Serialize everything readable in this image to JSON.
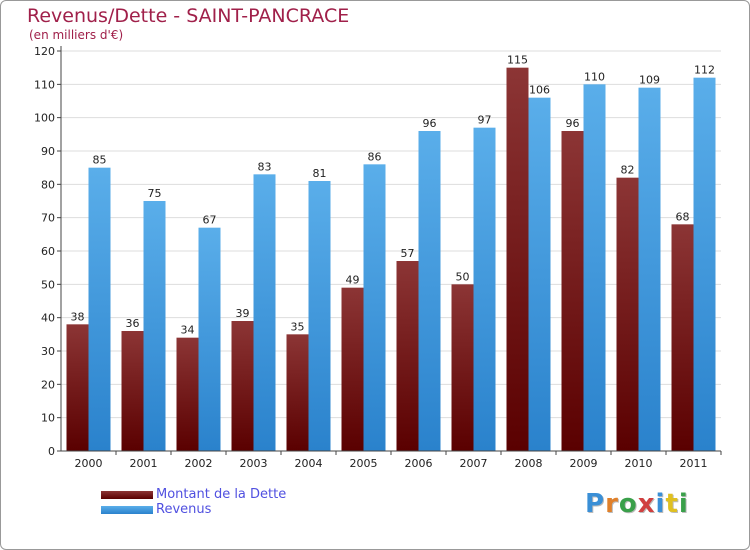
{
  "title": "Revenus/Dette - SAINT-PANCRACE",
  "subtitle": "(en milliers d'€)",
  "logo": {
    "text": "Proxiti",
    "colors": [
      "#3a8fd6",
      "#e0802a",
      "#3aa04a",
      "#d04040",
      "#3a8fd6",
      "#e0c020",
      "#3aa04a"
    ]
  },
  "colors": {
    "dette": "#6b0a0a",
    "revenus": "#2f8fdc",
    "title": "#a0204a",
    "legend_text": "#5050e0"
  },
  "chart_data": {
    "type": "bar",
    "title": "Revenus/Dette - SAINT-PANCRACE",
    "subtitle": "(en milliers d'€)",
    "categories": [
      "2000",
      "2001",
      "2002",
      "2003",
      "2004",
      "2005",
      "2006",
      "2007",
      "2008",
      "2009",
      "2010",
      "2011"
    ],
    "series": [
      {
        "name": "Montant de la Dette",
        "values": [
          38,
          36,
          34,
          39,
          35,
          49,
          57,
          50,
          115,
          96,
          82,
          68
        ]
      },
      {
        "name": "Revenus",
        "values": [
          85,
          75,
          67,
          83,
          81,
          86,
          96,
          97,
          106,
          110,
          109,
          112
        ]
      }
    ],
    "ylim": [
      0,
      120
    ],
    "yticks": [
      0,
      10,
      20,
      30,
      40,
      50,
      60,
      70,
      80,
      90,
      100,
      110,
      120
    ],
    "grid": true,
    "legend": "bottom-left"
  }
}
